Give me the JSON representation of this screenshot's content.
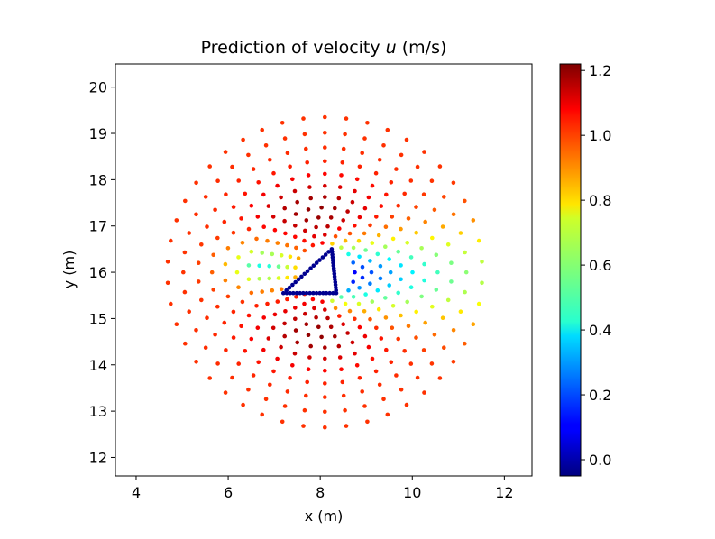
{
  "chart_data": {
    "type": "scatter",
    "title_prefix": "Prediction of velocity ",
    "title_var": "u",
    "title_suffix": " (m/s)",
    "xlabel": "x (m)",
    "ylabel": "y (m)",
    "xlim": [
      3.55,
      12.6
    ],
    "ylim": [
      11.6,
      20.5
    ],
    "xticks": [
      4,
      6,
      8,
      10,
      12
    ],
    "yticks": [
      12,
      13,
      14,
      15,
      16,
      17,
      18,
      19,
      20
    ],
    "colorbar": {
      "colormap": "jet",
      "vmin": -0.05,
      "vmax": 1.22,
      "ticks": [
        "0.0",
        "0.2",
        "0.4",
        "0.6",
        "0.8",
        "1.0",
        "1.2"
      ]
    },
    "field_description": {
      "domain_center": [
        8.1,
        16.0
      ],
      "domain_radius": 3.5,
      "obstacle_triangle_vertices": [
        [
          7.2,
          15.55
        ],
        [
          8.25,
          16.5
        ],
        [
          8.35,
          15.55
        ]
      ],
      "free_stream_u": 1.0,
      "wake_direction": "+x"
    },
    "colors": {
      "axis": "#000000",
      "background": "#ffffff"
    }
  }
}
